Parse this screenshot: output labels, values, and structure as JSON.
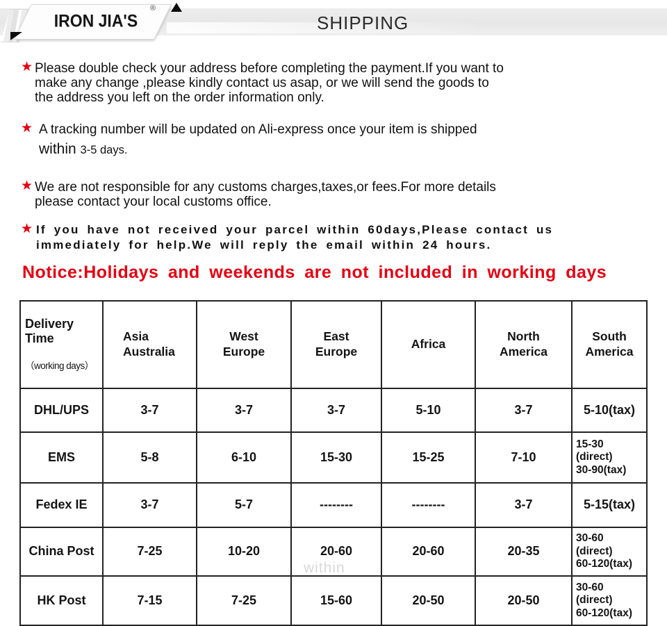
{
  "colors": {
    "accent_red": "#e60012",
    "bar_gray": "#ebebeb",
    "text_dark": "#1c1c1c",
    "border_dark": "#222222",
    "watermark_gray": "#bebebe"
  },
  "header": {
    "brand": "IRON JIA'S",
    "registered_mark": "®",
    "title": "SHIPPING"
  },
  "notes": [
    {
      "star": "★",
      "text": "Please double check your address before completing the payment.If you want to\nmake any change ,please kindly contact us asap, or we will send the goods to\nthe address you left on the order information only."
    },
    {
      "star": "★",
      "text": "A tracking number will be updated on Ali-express once your item is shipped",
      "line2_within": "within ",
      "line2_days": "3-5 days."
    },
    {
      "star": "★",
      "text": "We are not responsible for any customs charges,taxes,or fees.For more details\nplease contact your local customs office."
    },
    {
      "star": "★",
      "text": "If you have not received your parcel within 60days,Please contact us\nimmediately for help.We will reply the email within 24 hours."
    }
  ],
  "notice": "Notice:Holidays and weekends are not included in working days",
  "watermark": "within",
  "table": {
    "delivery_header": {
      "title": "Delivery\nTime",
      "sub": "（working days）"
    },
    "columns": [
      "Asia\nAustralia",
      "West\nEurope",
      "East\nEurope",
      "Africa",
      "North\nAmerica",
      "South\nAmerica"
    ],
    "rows": [
      {
        "carrier": "DHL/UPS",
        "cells": [
          "3-7",
          "3-7",
          "3-7",
          "5-10",
          "3-7",
          "5-10(tax)"
        ]
      },
      {
        "carrier": "EMS",
        "cells": [
          "5-8",
          "6-10",
          "15-30",
          "15-25",
          "7-10",
          "15-30\n(direct)\n30-90(tax)"
        ]
      },
      {
        "carrier": "Fedex IE",
        "cells": [
          "3-7",
          "5-7",
          "--------",
          "--------",
          "3-7",
          "5-15(tax)"
        ]
      },
      {
        "carrier": "China Post",
        "cells": [
          "7-25",
          "10-20",
          "20-60",
          "20-60",
          "20-35",
          "30-60\n(direct)\n60-120(tax)"
        ]
      },
      {
        "carrier": "HK Post",
        "cells": [
          "7-15",
          "7-25",
          "15-60",
          "20-50",
          "20-50",
          "30-60\n(direct)\n60-120(tax)"
        ]
      }
    ]
  }
}
